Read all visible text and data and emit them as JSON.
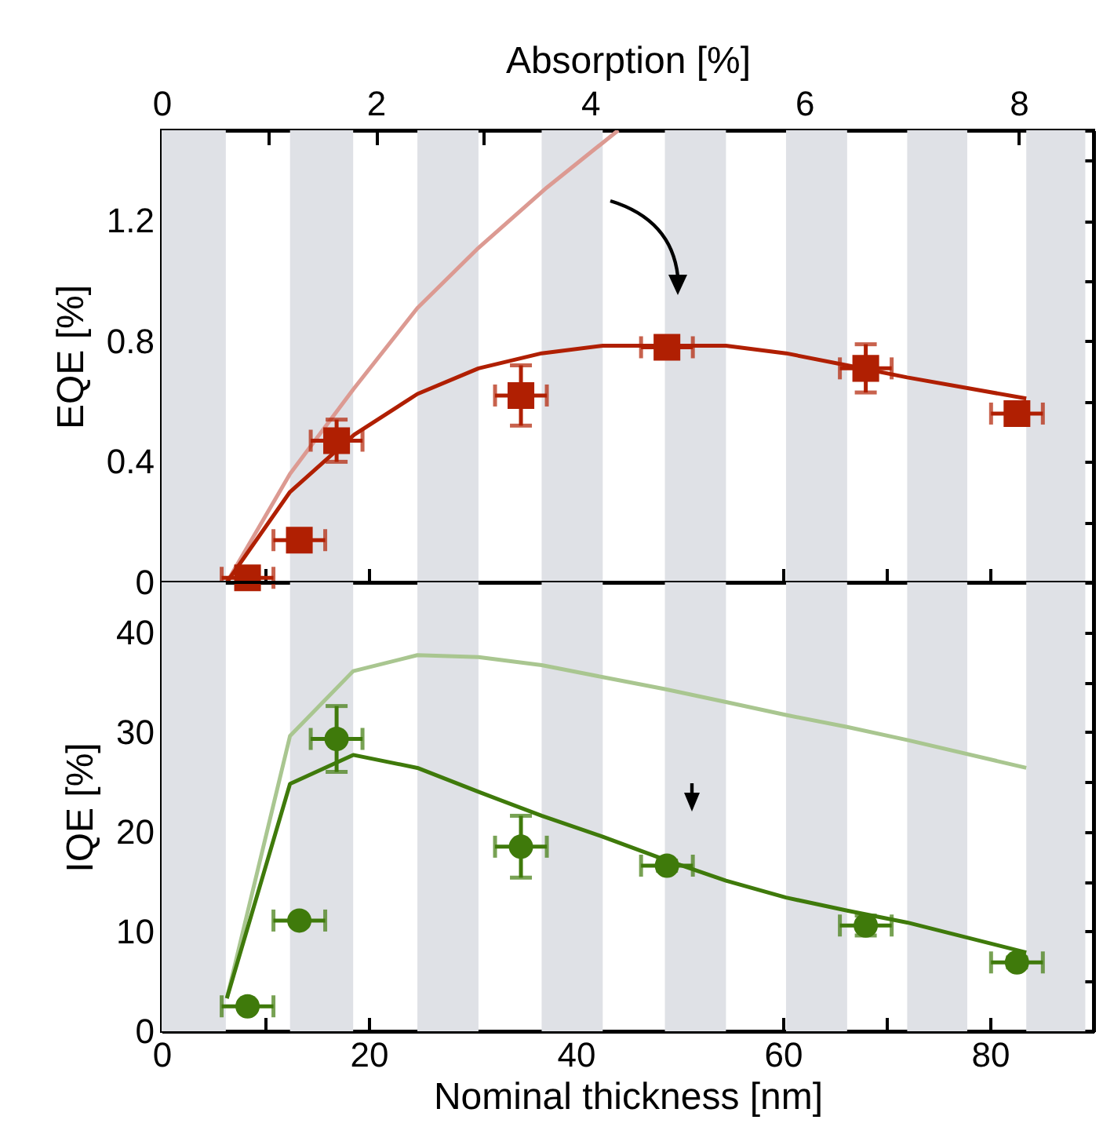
{
  "chart_data": [
    {
      "type": "scatter",
      "x2label": "Absorption [%]",
      "ylabel": "EQE [%]",
      "xlim": [
        0,
        90
      ],
      "xticks": [
        0,
        {
          "value": 10,
          "label": null
        },
        20,
        {
          "value": 30,
          "label": null
        },
        40,
        {
          "value": 50,
          "label": null
        },
        60,
        {
          "value": 70,
          "label": null
        },
        80,
        {
          "value": 90,
          "label": null
        }
      ],
      "x2lim": [
        0,
        8.7
      ],
      "x2ticks": [
        0,
        {
          "value": 1,
          "label": null
        },
        2,
        {
          "value": 3,
          "label": null
        },
        4,
        {
          "value": 5,
          "label": null
        },
        6,
        {
          "value": 7,
          "label": null
        },
        8
      ],
      "ylim": [
        0,
        1.5
      ],
      "yticks": [
        0,
        {
          "value": 0.2,
          "label": null
        },
        0.4,
        {
          "value": 0.6,
          "label": null
        },
        0.8,
        {
          "value": 1.0,
          "label": null
        },
        1.2,
        {
          "value": 1.4,
          "label": null
        }
      ],
      "tick_labels": "y",
      "bands": [
        {
          "axis": "x",
          "from": 0,
          "to": 6.2,
          "color": "#dfe1e6"
        },
        {
          "axis": "x",
          "from": 12.4,
          "to": 18.5,
          "color": "#dfe1e6"
        },
        {
          "axis": "x",
          "from": 24.7,
          "to": 30.6,
          "color": "#dfe1e6"
        },
        {
          "axis": "x",
          "from": 36.7,
          "to": 42.6,
          "color": "#dfe1e6"
        },
        {
          "axis": "x",
          "from": 48.6,
          "to": 54.5,
          "color": "#dfe1e6"
        },
        {
          "axis": "x",
          "from": 60.3,
          "to": 66.2,
          "color": "#dfe1e6"
        },
        {
          "axis": "x",
          "from": 72.0,
          "to": 77.8,
          "color": "#dfe1e6"
        },
        {
          "axis": "x",
          "from": 83.5,
          "to": 89.2,
          "color": "#dfe1e6"
        }
      ],
      "series": [
        {
          "type": "line",
          "color": "#dc9a92",
          "x": [
            6.3,
            12.4,
            18.5,
            24.7,
            30.6,
            37.2,
            44.1
          ],
          "values": [
            0,
            0.36,
            0.64,
            0.91,
            1.11,
            1.31,
            1.5
          ]
        },
        {
          "type": "line",
          "color": "#b01f02",
          "x": [
            6.3,
            12.4,
            18.6,
            24.7,
            30.6,
            36.7,
            42.6,
            54.5,
            60.3,
            66.2,
            72.0,
            83.5
          ],
          "values": [
            0,
            0.3,
            0.49,
            0.625,
            0.71,
            0.76,
            0.785,
            0.785,
            0.76,
            0.72,
            0.68,
            0.61
          ]
        },
        {
          "type": "scatter",
          "marker": "square",
          "color": "#b01f02",
          "x": [
            8.3,
            13.3,
            16.9,
            34.7,
            48.8,
            68.0,
            82.6
          ],
          "values": [
            0.015,
            0.14,
            0.47,
            0.62,
            0.78,
            0.71,
            0.56
          ],
          "errors": [
            null,
            null,
            0.07,
            0.1,
            null,
            0.08,
            null
          ],
          "xerrors": [
            2.5,
            2.5,
            2.5,
            2.5,
            2.5,
            2.5,
            2.5
          ]
        }
      ]
    },
    {
      "type": "scatter",
      "xlabel": "Nominal thickness [nm]",
      "ylabel": "IQE [%]",
      "xlim": [
        0,
        90
      ],
      "xticks": [
        0,
        {
          "value": 10,
          "label": null
        },
        20,
        {
          "value": 30,
          "label": null
        },
        40,
        {
          "value": 50,
          "label": null
        },
        60,
        {
          "value": 70,
          "label": null
        },
        80,
        {
          "value": 90,
          "label": null
        }
      ],
      "ylim": [
        0,
        45
      ],
      "yticks": [
        0,
        {
          "value": 5,
          "label": null
        },
        10,
        {
          "value": 15,
          "label": null
        },
        20,
        {
          "value": 25,
          "label": null
        },
        30,
        {
          "value": 35,
          "label": null
        },
        40
      ],
      "bands": [
        {
          "axis": "x",
          "from": 0,
          "to": 6.2,
          "color": "#dfe1e6"
        },
        {
          "axis": "x",
          "from": 12.4,
          "to": 18.5,
          "color": "#dfe1e6"
        },
        {
          "axis": "x",
          "from": 24.7,
          "to": 30.6,
          "color": "#dfe1e6"
        },
        {
          "axis": "x",
          "from": 36.7,
          "to": 42.6,
          "color": "#dfe1e6"
        },
        {
          "axis": "x",
          "from": 48.6,
          "to": 54.5,
          "color": "#dfe1e6"
        },
        {
          "axis": "x",
          "from": 60.3,
          "to": 66.2,
          "color": "#dfe1e6"
        },
        {
          "axis": "x",
          "from": 72.0,
          "to": 77.8,
          "color": "#dfe1e6"
        },
        {
          "axis": "x",
          "from": 83.5,
          "to": 89.2,
          "color": "#dfe1e6"
        }
      ],
      "series": [
        {
          "type": "line",
          "color": "#a9c690",
          "x": [
            6.3,
            12.4,
            18.5,
            24.7,
            30.6,
            36.7,
            42.6,
            48.6,
            54.5,
            60.3,
            66.2,
            72.0,
            83.5
          ],
          "values": [
            3.3,
            29.6,
            36.1,
            37.7,
            37.5,
            36.7,
            35.5,
            34.3,
            33.0,
            31.7,
            30.5,
            29.2,
            26.4
          ]
        },
        {
          "type": "line",
          "color": "#3f7a0b",
          "x": [
            6.3,
            12.4,
            18.5,
            24.7,
            30.6,
            36.7,
            42.6,
            48.6,
            54.5,
            60.3,
            66.2,
            72.0,
            83.5
          ],
          "values": [
            3.3,
            24.8,
            27.7,
            26.4,
            24.0,
            21.6,
            19.5,
            17.2,
            15.1,
            13.4,
            12.1,
            10.9,
            7.9
          ]
        },
        {
          "type": "scatter",
          "marker": "circle",
          "color": "#3f7a0b",
          "x": [
            8.3,
            13.3,
            16.9,
            34.7,
            48.8,
            68.0,
            82.6
          ],
          "values": [
            2.5,
            11.1,
            29.3,
            18.5,
            16.6,
            10.6,
            6.9
          ],
          "errors": [
            null,
            null,
            3.3,
            3.1,
            0.5,
            1.0,
            0.5
          ],
          "xerrors": [
            2.5,
            2.5,
            2.5,
            2.5,
            2.5,
            2.5,
            2.5
          ]
        }
      ]
    }
  ]
}
